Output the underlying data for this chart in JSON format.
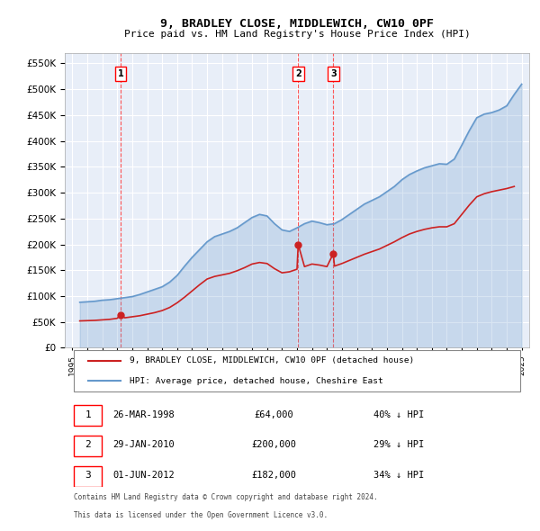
{
  "title": "9, BRADLEY CLOSE, MIDDLEWICH, CW10 0PF",
  "subtitle": "Price paid vs. HM Land Registry's House Price Index (HPI)",
  "legend_line1": "9, BRADLEY CLOSE, MIDDLEWICH, CW10 0PF (detached house)",
  "legend_line2": "HPI: Average price, detached house, Cheshire East",
  "footer1": "Contains HM Land Registry data © Crown copyright and database right 2024.",
  "footer2": "This data is licensed under the Open Government Licence v3.0.",
  "transactions": [
    {
      "num": 1,
      "date": "26-MAR-1998",
      "price": "£64,000",
      "pct": "40% ↓ HPI",
      "year": 1998.23
    },
    {
      "num": 2,
      "date": "29-JAN-2010",
      "price": "£200,000",
      "pct": "29% ↓ HPI",
      "year": 2010.08
    },
    {
      "num": 3,
      "date": "01-JUN-2012",
      "price": "£182,000",
      "pct": "34% ↓ HPI",
      "year": 2012.42
    }
  ],
  "hpi_color": "#6699cc",
  "price_color": "#cc2222",
  "dashed_color": "#ff4444",
  "bg_color": "#e8eef8",
  "grid_color": "#ffffff",
  "ylim": [
    0,
    570000
  ],
  "yticks": [
    0,
    50000,
    100000,
    150000,
    200000,
    250000,
    300000,
    350000,
    400000,
    450000,
    500000,
    550000
  ],
  "xlim_start": 1994.5,
  "xlim_end": 2025.5,
  "xticks": [
    1995,
    1996,
    1997,
    1998,
    1999,
    2000,
    2001,
    2002,
    2003,
    2004,
    2005,
    2006,
    2007,
    2008,
    2009,
    2010,
    2011,
    2012,
    2013,
    2014,
    2015,
    2016,
    2017,
    2018,
    2019,
    2020,
    2021,
    2022,
    2023,
    2024,
    2025
  ],
  "hpi_data": {
    "years": [
      1995.5,
      1996.0,
      1996.5,
      1997.0,
      1997.5,
      1998.0,
      1998.5,
      1999.0,
      1999.5,
      2000.0,
      2000.5,
      2001.0,
      2001.5,
      2002.0,
      2002.5,
      2003.0,
      2003.5,
      2004.0,
      2004.5,
      2005.0,
      2005.5,
      2006.0,
      2006.5,
      2007.0,
      2007.5,
      2008.0,
      2008.5,
      2009.0,
      2009.5,
      2010.0,
      2010.5,
      2011.0,
      2011.5,
      2012.0,
      2012.5,
      2013.0,
      2013.5,
      2014.0,
      2014.5,
      2015.0,
      2015.5,
      2016.0,
      2016.5,
      2017.0,
      2017.5,
      2018.0,
      2018.5,
      2019.0,
      2019.5,
      2020.0,
      2020.5,
      2021.0,
      2021.5,
      2022.0,
      2022.5,
      2023.0,
      2023.5,
      2024.0,
      2024.5,
      2025.0
    ],
    "values": [
      88000,
      89000,
      90000,
      92000,
      93000,
      95000,
      97000,
      99000,
      103000,
      108000,
      113000,
      118000,
      127000,
      140000,
      158000,
      175000,
      190000,
      205000,
      215000,
      220000,
      225000,
      232000,
      242000,
      252000,
      258000,
      255000,
      240000,
      228000,
      225000,
      232000,
      240000,
      245000,
      242000,
      238000,
      240000,
      248000,
      258000,
      268000,
      278000,
      285000,
      292000,
      302000,
      312000,
      325000,
      335000,
      342000,
      348000,
      352000,
      356000,
      355000,
      365000,
      392000,
      420000,
      445000,
      452000,
      455000,
      460000,
      468000,
      490000,
      510000
    ]
  },
  "price_data": {
    "years": [
      1995.5,
      1996.0,
      1996.5,
      1997.0,
      1997.5,
      1998.0,
      1998.23,
      1998.5,
      1999.0,
      1999.5,
      2000.0,
      2000.5,
      2001.0,
      2001.5,
      2002.0,
      2002.5,
      2003.0,
      2003.5,
      2004.0,
      2004.5,
      2005.0,
      2005.5,
      2006.0,
      2006.5,
      2007.0,
      2007.5,
      2008.0,
      2008.5,
      2009.0,
      2009.5,
      2010.0,
      2010.08,
      2010.5,
      2011.0,
      2011.5,
      2012.0,
      2012.42,
      2012.5,
      2013.0,
      2013.5,
      2014.0,
      2014.5,
      2015.0,
      2015.5,
      2016.0,
      2016.5,
      2017.0,
      2017.5,
      2018.0,
      2018.5,
      2019.0,
      2019.5,
      2020.0,
      2020.5,
      2021.0,
      2021.5,
      2022.0,
      2022.5,
      2023.0,
      2023.5,
      2024.0,
      2024.5
    ],
    "values": [
      52000,
      52500,
      53000,
      54000,
      55000,
      57000,
      64000,
      58000,
      60000,
      62000,
      65000,
      68000,
      72000,
      78000,
      87000,
      98000,
      110000,
      122000,
      133000,
      138000,
      141000,
      144000,
      149000,
      155000,
      162000,
      165000,
      163000,
      153000,
      145000,
      147000,
      152000,
      200000,
      157000,
      162000,
      160000,
      157000,
      182000,
      158000,
      163000,
      169000,
      175000,
      181000,
      186000,
      191000,
      198000,
      205000,
      213000,
      220000,
      225000,
      229000,
      232000,
      234000,
      234000,
      240000,
      258000,
      276000,
      292000,
      298000,
      302000,
      305000,
      308000,
      312000
    ]
  }
}
